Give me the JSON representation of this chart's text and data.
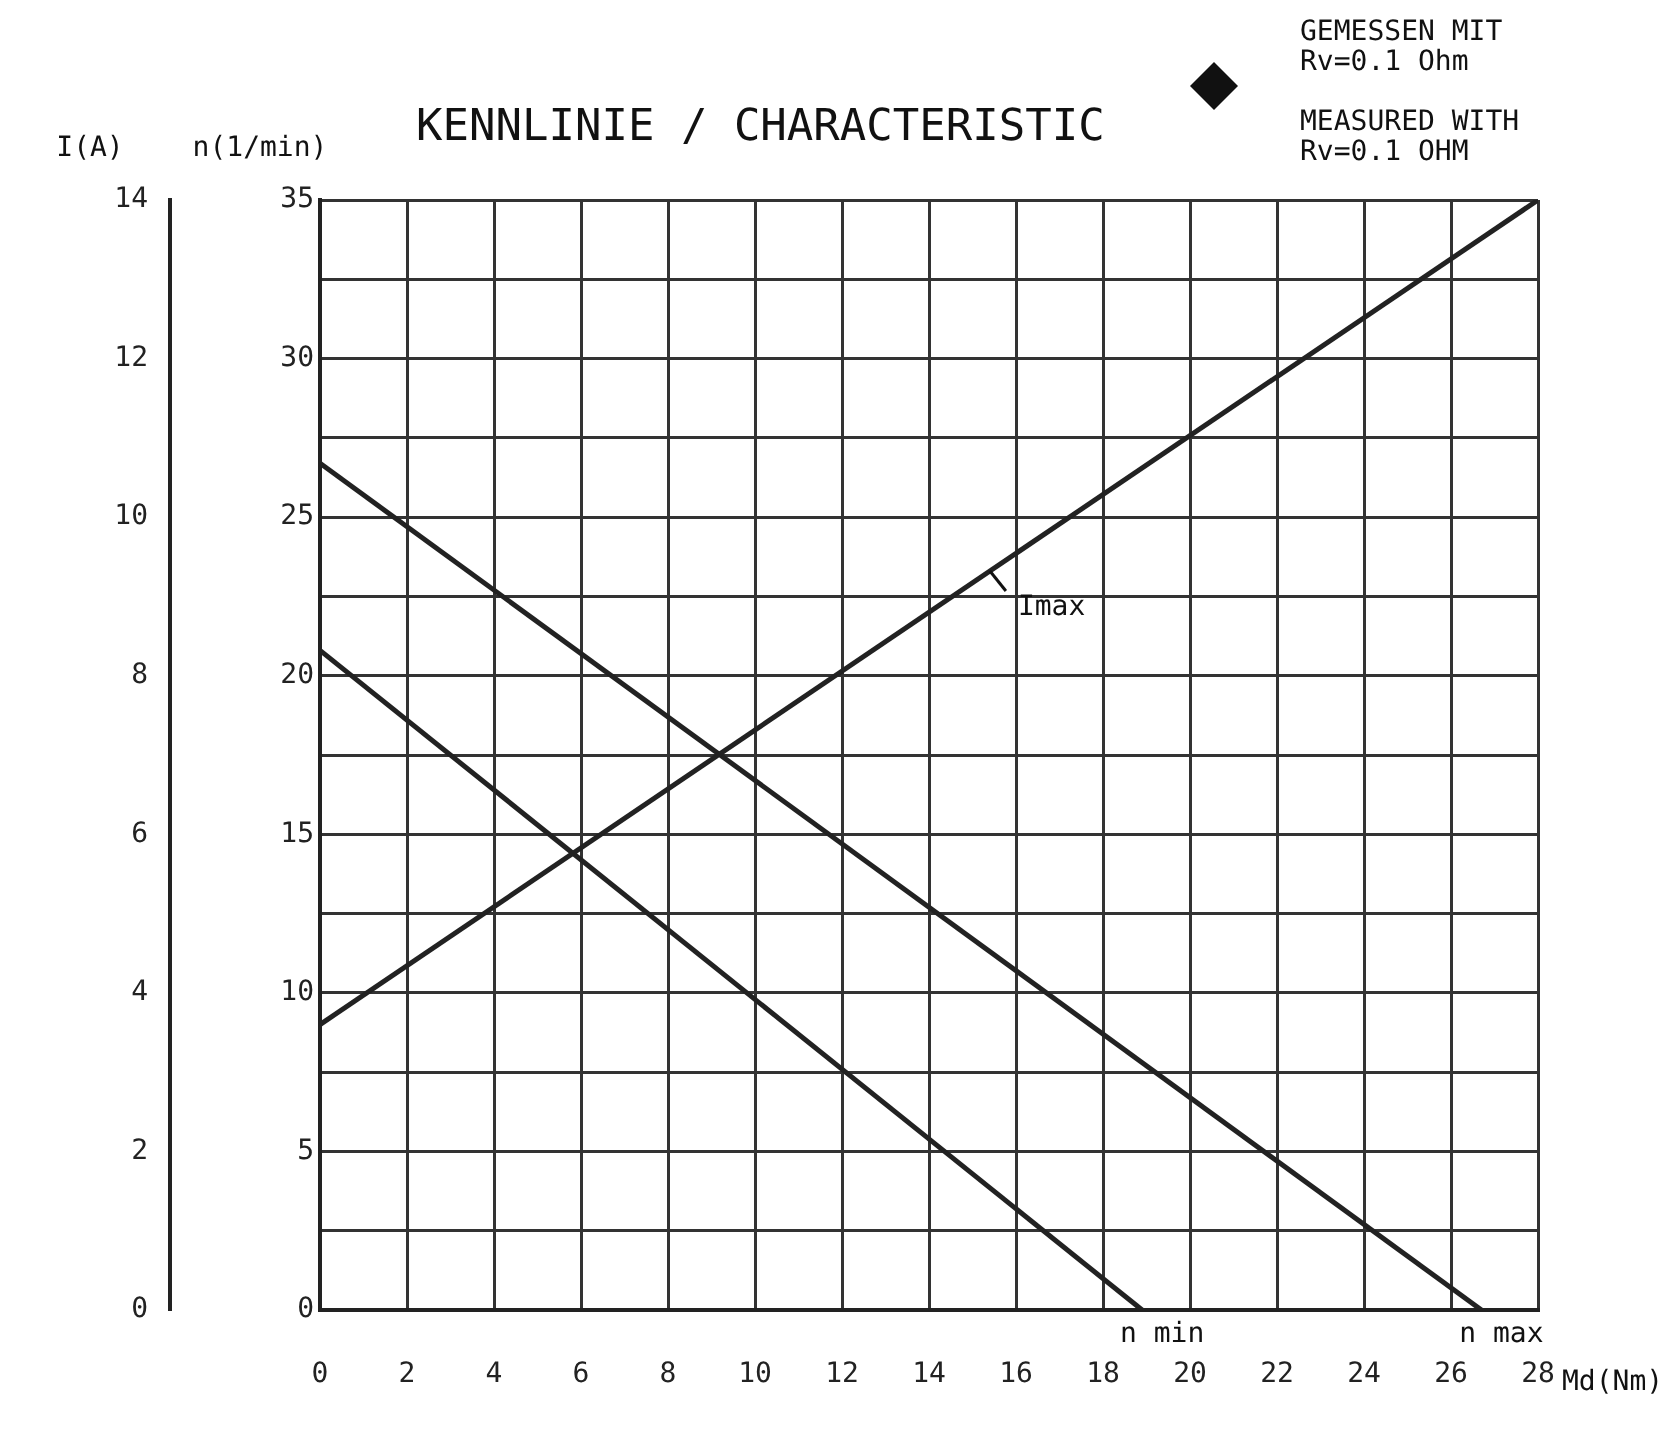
{
  "chart_data": {
    "type": "line",
    "title": "KENNLINIE / CHARACTERISTIC",
    "xlabel": "Md(Nm)",
    "ylabel": "n(1/min)",
    "y2label": "I(A)",
    "annotations": [
      "GEMESSEN MIT\nRv=0.1 Ohm",
      "MEASURED WITH\nRv=0.1 OHM"
    ],
    "series": [
      {
        "name": "Imax",
        "color": "#222222",
        "axis": "y2",
        "x": [
          0,
          28
        ],
        "values": [
          3.6,
          14
        ]
      },
      {
        "name": "n min",
        "color": "#222222",
        "x": [
          0,
          18.9
        ],
        "values": [
          20.8,
          0
        ]
      },
      {
        "name": "n max",
        "color": "#222222",
        "x": [
          0,
          26.7
        ],
        "values": [
          26.7,
          0
        ]
      }
    ],
    "xlim": [
      0,
      28
    ],
    "xticks": [
      0,
      2,
      4,
      6,
      8,
      10,
      12,
      14,
      16,
      18,
      20,
      22,
      24,
      26,
      28
    ],
    "ylim": [
      0,
      35
    ],
    "yticks": [
      0,
      {
        "value": 2.5,
        "label": null
      },
      5,
      {
        "value": 7.5,
        "label": null
      },
      10,
      {
        "value": 12.5,
        "label": null
      },
      15,
      {
        "value": 17.5,
        "label": null
      },
      20,
      {
        "value": 22.5,
        "label": null
      },
      25,
      {
        "value": 27.5,
        "label": null
      },
      30,
      {
        "value": 32.5,
        "label": null
      },
      35
    ],
    "y2lim": [
      0,
      14
    ],
    "y2ticks": [
      0,
      2,
      4,
      6,
      8,
      10,
      12,
      14
    ],
    "grid": true,
    "legend": false,
    "marker": "none",
    "line_style": "solid"
  }
}
